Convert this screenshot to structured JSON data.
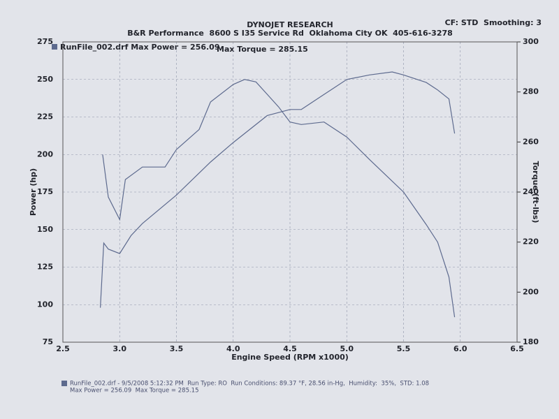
{
  "chart_data": {
    "type": "line",
    "title": "DYNOJET RESEARCH",
    "subtitle": "B&R Performance  8600 S I35 Service Rd  Oklahoma City OK  405-616-3278",
    "annotation": "CF: STD  Smoothing: 3",
    "x_label": "Engine Speed (RPM x1000)",
    "y_label": "Power (hp)",
    "y2_label": "Torque (ft-lbs)",
    "xlim": [
      2.5,
      6.5
    ],
    "xticks": [
      2.5,
      {
        "value": 3,
        "label": "3.0"
      },
      3.5,
      {
        "value": 4,
        "label": "4.0"
      },
      4.5,
      {
        "value": 5,
        "label": "5.0"
      },
      5.5,
      {
        "value": 6,
        "label": "6.0"
      },
      6.5
    ],
    "ylim": [
      75,
      275
    ],
    "yticks": [
      75,
      100,
      125,
      150,
      175,
      200,
      225,
      250,
      275
    ],
    "y2lim": [
      180,
      300
    ],
    "y2ticks": [
      180,
      200,
      220,
      240,
      260,
      280,
      300
    ],
    "grid": true,
    "series": [
      {
        "name": "RunFile_002.drf Max Power = 256.09",
        "color": "#5d6a8e",
        "x": [
          2.83,
          2.86,
          2.9,
          3.0,
          3.1,
          3.2,
          3.5,
          3.8,
          4.0,
          4.3,
          4.5,
          4.6,
          4.8,
          5.0,
          5.2,
          5.4,
          5.5,
          5.7,
          5.8,
          5.9,
          5.95
        ],
        "values": [
          98,
          141,
          137,
          134,
          146,
          154,
          173,
          195,
          208,
          226,
          230,
          230,
          240,
          250,
          253,
          255,
          253,
          248,
          243,
          237,
          214
        ]
      },
      {
        "name": "Max Torque = 285.15",
        "color": "#5d6a8e",
        "axis": "y2",
        "x": [
          2.85,
          2.9,
          3.0,
          3.05,
          3.2,
          3.4,
          3.5,
          3.7,
          3.8,
          4.0,
          4.1,
          4.2,
          4.4,
          4.5,
          4.6,
          4.8,
          5.0,
          5.2,
          5.5,
          5.7,
          5.8,
          5.9,
          5.95
        ],
        "values": [
          255,
          238,
          229,
          245,
          250,
          250,
          257,
          265,
          276,
          283,
          285,
          284,
          274,
          268,
          267,
          268,
          262,
          253,
          240,
          227,
          220,
          206,
          190
        ]
      }
    ],
    "footer": [
      "RunFile_002.drf - 9/5/2008 5:12:32 PM  Run Type: RO  Run Conditions: 89.37 °F, 28.56 in-Hg,  Humidity:  35%,  STD: 1.08",
      "Max Power = 256.09  Max Torque = 285.15"
    ]
  }
}
